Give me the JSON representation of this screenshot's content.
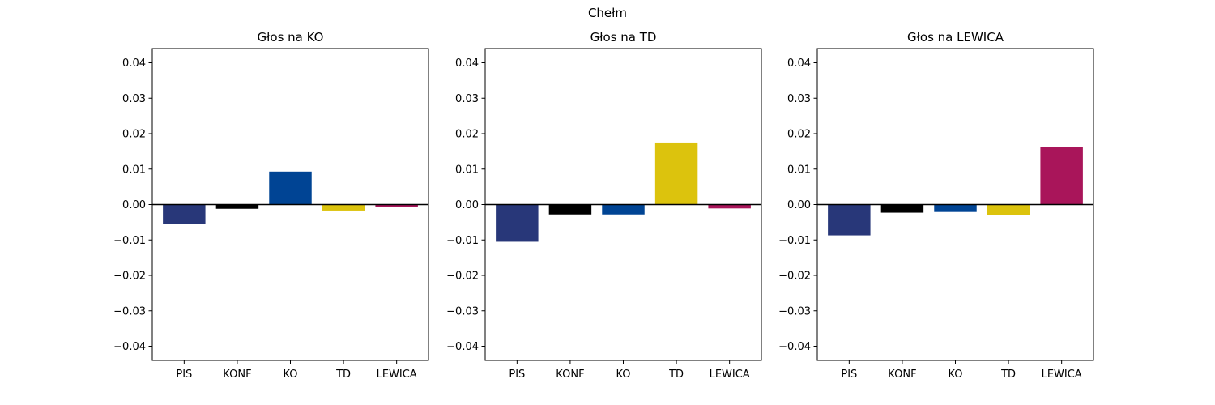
{
  "figure_title": "Chełm",
  "chart_data": [
    {
      "type": "bar",
      "title": "Głos na KO",
      "categories": [
        "PIS",
        "KONF",
        "KO",
        "TD",
        "LEWICA"
      ],
      "values": [
        -0.0055,
        -0.0012,
        0.0093,
        -0.0017,
        -0.0008
      ],
      "colors": [
        "#283779",
        "#000000",
        "#004494",
        "#dcc30d",
        "#a9155a"
      ],
      "ylim": [
        -0.044,
        0.044
      ],
      "yticks": [
        -0.04,
        -0.03,
        -0.02,
        -0.01,
        0.0,
        0.01,
        0.02,
        0.03,
        0.04
      ],
      "ytick_labels": [
        "−0.04",
        "−0.03",
        "−0.02",
        "−0.01",
        "0.00",
        "0.01",
        "0.02",
        "0.03",
        "0.04"
      ],
      "xlabel": "",
      "ylabel": "",
      "grid": false,
      "zero_line": true
    },
    {
      "type": "bar",
      "title": "Głos na TD",
      "categories": [
        "PIS",
        "KONF",
        "KO",
        "TD",
        "LEWICA"
      ],
      "values": [
        -0.0105,
        -0.0028,
        -0.0028,
        0.0175,
        -0.0011
      ],
      "colors": [
        "#283779",
        "#000000",
        "#004494",
        "#dcc30d",
        "#a9155a"
      ],
      "ylim": [
        -0.044,
        0.044
      ],
      "yticks": [
        -0.04,
        -0.03,
        -0.02,
        -0.01,
        0.0,
        0.01,
        0.02,
        0.03,
        0.04
      ],
      "ytick_labels": [
        "−0.04",
        "−0.03",
        "−0.02",
        "−0.01",
        "0.00",
        "0.01",
        "0.02",
        "0.03",
        "0.04"
      ],
      "xlabel": "",
      "ylabel": "",
      "grid": false,
      "zero_line": true
    },
    {
      "type": "bar",
      "title": "Głos na LEWICA",
      "categories": [
        "PIS",
        "KONF",
        "KO",
        "TD",
        "LEWICA"
      ],
      "values": [
        -0.0087,
        -0.0023,
        -0.0021,
        -0.003,
        0.0162
      ],
      "colors": [
        "#283779",
        "#000000",
        "#004494",
        "#dcc30d",
        "#a9155a"
      ],
      "ylim": [
        -0.044,
        0.044
      ],
      "yticks": [
        -0.04,
        -0.03,
        -0.02,
        -0.01,
        0.0,
        0.01,
        0.02,
        0.03,
        0.04
      ],
      "ytick_labels": [
        "−0.04",
        "−0.03",
        "−0.02",
        "−0.01",
        "0.00",
        "0.01",
        "0.02",
        "0.03",
        "0.04"
      ],
      "xlabel": "",
      "ylabel": "",
      "grid": false,
      "zero_line": true
    }
  ]
}
